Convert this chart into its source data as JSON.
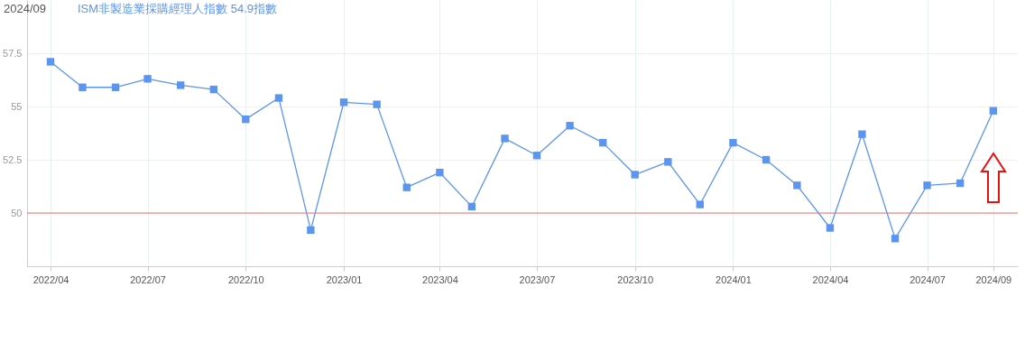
{
  "chart_data": {
    "type": "line",
    "title": "2024/09",
    "x": [
      "2022-04",
      "2022-05",
      "2022-06",
      "2022-07",
      "2022-08",
      "2022-09",
      "2022-10",
      "2022-11",
      "2022-12",
      "2023-01",
      "2023-02",
      "2023-03",
      "2023-04",
      "2023-05",
      "2023-06",
      "2023-07",
      "2023-08",
      "2023-09",
      "2023-10",
      "2023-11",
      "2023-12",
      "2024-01",
      "2024-02",
      "2024-03",
      "2024-04",
      "2024-05",
      "2024-06",
      "2024-07",
      "2024-08",
      "2024-09"
    ],
    "series": [
      {
        "name": "ISM非製造業採購經理人指數 54.9指數",
        "color": "#5b95f0",
        "values": [
          57.1,
          55.9,
          55.9,
          56.3,
          56.0,
          55.8,
          54.4,
          55.4,
          49.2,
          55.2,
          55.1,
          51.2,
          51.9,
          50.3,
          53.5,
          52.7,
          54.1,
          53.3,
          51.8,
          52.4,
          50.4,
          53.3,
          52.5,
          51.3,
          49.3,
          53.7,
          48.8,
          51.3,
          51.4,
          54.8
        ]
      }
    ],
    "xlim": [
      "2022-03-10",
      "2024-09-24"
    ],
    "xticks": [
      {
        "value": "2022-04",
        "label": "2022/04"
      },
      {
        "value": "2022-07",
        "label": "2022/07"
      },
      {
        "value": "2022-10",
        "label": "2022/10"
      },
      {
        "value": "2023-01",
        "label": "2023/01"
      },
      {
        "value": "2023-04",
        "label": "2023/04"
      },
      {
        "value": "2023-07",
        "label": "2023/07"
      },
      {
        "value": "2023-10",
        "label": "2023/10"
      },
      {
        "value": "2024-01",
        "label": "2024/01"
      },
      {
        "value": "2024-04",
        "label": "2024/04"
      },
      {
        "value": "2024-07",
        "label": "2024/07"
      },
      {
        "value": "2024-09",
        "label": "2024/09"
      }
    ],
    "ylim": [
      47.5,
      60
    ],
    "yticks": [
      50,
      52.5,
      55,
      57.5
    ],
    "grid": true,
    "legend": "top left",
    "marker": "square",
    "ref_lines": [
      {
        "axis": "y",
        "value": 50,
        "color": "#f07070"
      }
    ]
  }
}
